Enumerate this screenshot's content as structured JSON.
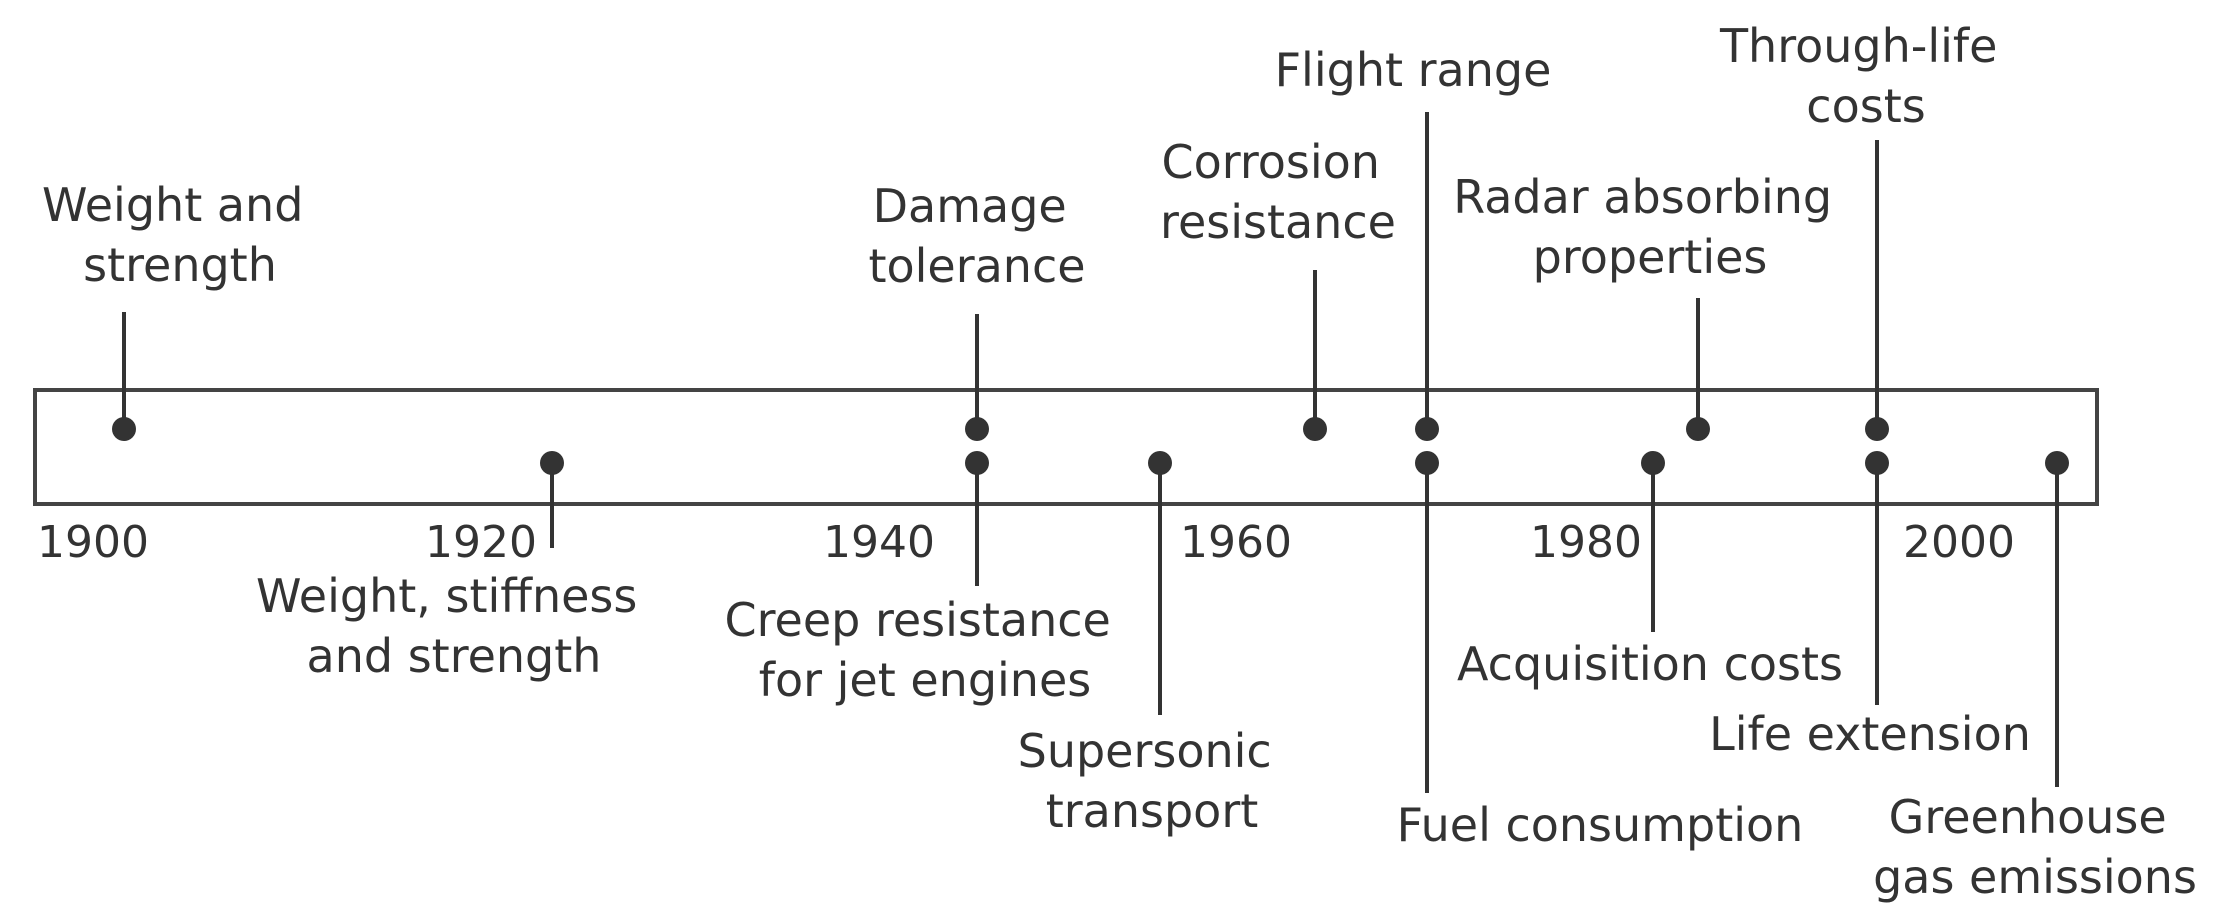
{
  "timeline": {
    "axis_years": [
      "1900",
      "1920",
      "1940",
      "1960",
      "1980",
      "2000"
    ],
    "events_above": [
      {
        "id": "weight-and-strength",
        "year": 1901,
        "lines": [
          "Weight and",
          "strength"
        ]
      },
      {
        "id": "damage-tolerance",
        "year": 1945,
        "lines": [
          "Damage",
          "tolerance"
        ]
      },
      {
        "id": "corrosion-resistance",
        "year": 1964,
        "lines": [
          "Corrosion",
          "resistance"
        ]
      },
      {
        "id": "flight-range",
        "year": 1970,
        "lines": [
          "Flight range"
        ]
      },
      {
        "id": "radar-absorbing-properties",
        "year": 1985,
        "lines": [
          "Radar absorbing",
          "properties"
        ]
      },
      {
        "id": "through-life-costs",
        "year": 1995,
        "lines": [
          "Through-life",
          "costs"
        ]
      }
    ],
    "events_below": [
      {
        "id": "weight-stiffness-and-strength",
        "year": 1923,
        "lines": [
          "Weight, stiffness",
          "and strength"
        ]
      },
      {
        "id": "creep-resistance-for-jet-engines",
        "year": 1945,
        "lines": [
          "Creep resistance",
          "for jet engines"
        ]
      },
      {
        "id": "supersonic-transport",
        "year": 1955,
        "lines": [
          "Supersonic",
          "transport"
        ]
      },
      {
        "id": "fuel-consumption",
        "year": 1970,
        "lines": [
          "Fuel consumption"
        ]
      },
      {
        "id": "acquisition-costs",
        "year": 1983,
        "lines": [
          "Acquisition costs"
        ]
      },
      {
        "id": "life-extension",
        "year": 1995,
        "lines": [
          "Life extension"
        ]
      },
      {
        "id": "greenhouse-gas-emissions",
        "year": 2005,
        "lines": [
          "Greenhouse",
          "gas emissions"
        ]
      }
    ]
  }
}
